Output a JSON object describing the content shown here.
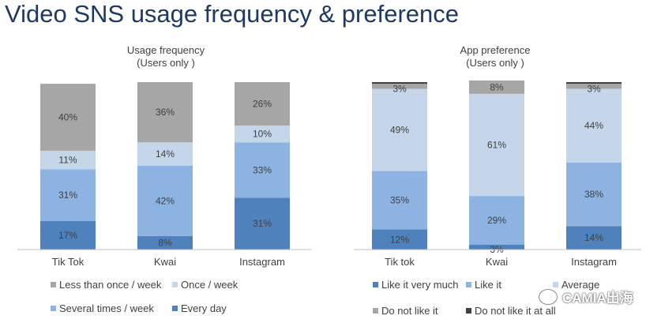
{
  "page": {
    "title": "Video SNS usage frequency & preference"
  },
  "watermark": {
    "text": "CAMIA出海",
    "icon": "wechat-icon"
  },
  "chart_data": [
    {
      "type": "bar",
      "stacked": true,
      "title": "Usage frequency",
      "subtitle": "(Users only )",
      "categories": [
        "Tik Tok",
        "Kwai",
        "Instagram"
      ],
      "ylim": [
        0,
        100
      ],
      "grid": false,
      "legend_position": "bottom",
      "series": [
        {
          "name": "Every day",
          "color": "#4f81bd",
          "values": [
            17,
            8,
            31
          ],
          "labels": [
            "17%",
            "8%",
            "31%"
          ]
        },
        {
          "name": "Several times / week",
          "color": "#8db3e2",
          "values": [
            31,
            42,
            33
          ],
          "labels": [
            "31%",
            "42%",
            "33%"
          ]
        },
        {
          "name": "Once / week",
          "color": "#c5d6eb",
          "values": [
            11,
            14,
            10
          ],
          "labels": [
            "11%",
            "14%",
            "10%"
          ]
        },
        {
          "name": "Less than once / week",
          "color": "#a6a6a6",
          "values": [
            40,
            36,
            26
          ],
          "labels": [
            "40%",
            "36%",
            "26%"
          ]
        }
      ],
      "legend_order": [
        [
          "Less than once / week",
          "Once / week"
        ],
        [
          "Several times / week",
          "Every day"
        ]
      ]
    },
    {
      "type": "bar",
      "stacked": true,
      "title": "App preference",
      "subtitle": "(Users only )",
      "categories": [
        "Tik tok",
        "Kwai",
        "Instagram"
      ],
      "ylim": [
        0,
        100
      ],
      "grid": false,
      "legend_position": "bottom",
      "series": [
        {
          "name": "Like it very much",
          "color": "#4f81bd",
          "values": [
            12,
            3,
            14
          ],
          "labels": [
            "12%",
            "3%",
            "14%"
          ]
        },
        {
          "name": "Like it",
          "color": "#8db3e2",
          "values": [
            35,
            29,
            38
          ],
          "labels": [
            "35%",
            "29%",
            "38%"
          ]
        },
        {
          "name": "Average",
          "color": "#c5d6eb",
          "values": [
            49,
            61,
            44
          ],
          "labels": [
            "49%",
            "61%",
            "44%"
          ]
        },
        {
          "name": "Do not like it",
          "color": "#a6a6a6",
          "values": [
            3,
            8,
            3
          ],
          "labels": [
            "3%",
            "8%",
            "3%"
          ]
        },
        {
          "name": "Do not like it at all",
          "color": "#404040",
          "values": [
            1,
            0,
            1
          ],
          "labels": [
            "",
            "",
            ""
          ]
        }
      ],
      "legend_order": [
        [
          "Like it very much",
          "Like it",
          "Average"
        ],
        [
          "Do not like it",
          "Do not like it at all"
        ]
      ]
    }
  ]
}
